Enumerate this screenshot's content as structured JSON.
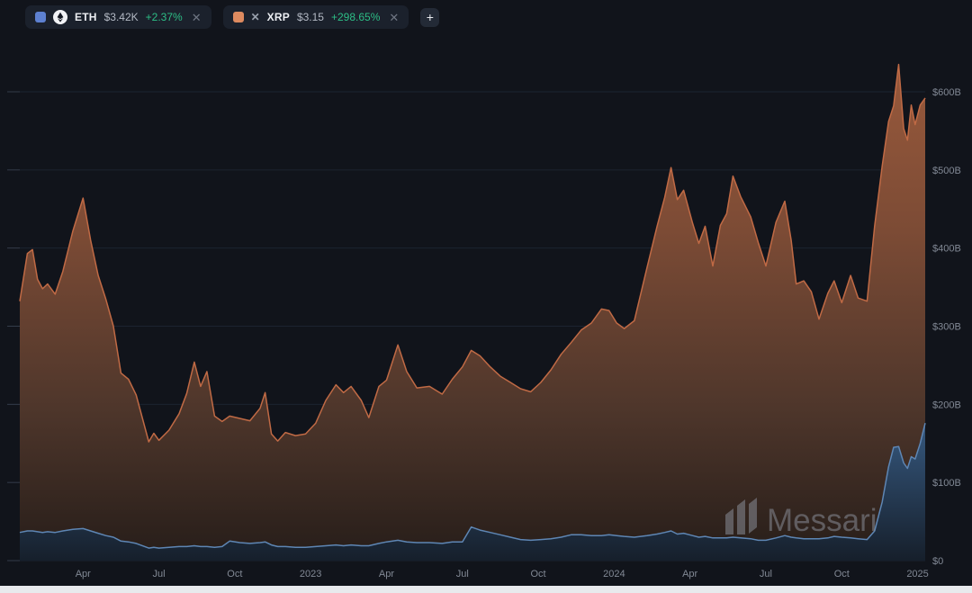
{
  "toolbar": {
    "assets": [
      {
        "symbol": "ETH",
        "price": "$3.42K",
        "change": "+2.37%",
        "swatch_color": "#5d80d0",
        "logo": "eth-icon"
      },
      {
        "symbol": "XRP",
        "price": "$3.15",
        "change": "+298.65%",
        "swatch_color": "#dd8a5f",
        "logo": "xrp-icon"
      }
    ],
    "add_button_label": "+"
  },
  "icons": {
    "close_glyph": "✕",
    "xrp_logo_glyph": "✕"
  },
  "watermark": {
    "text": "Messari"
  },
  "colors": {
    "background": "#11141b",
    "chip_background": "#1b212c",
    "positive_green": "#2dbe86",
    "eth_swatch": "#5d80d0",
    "xrp_swatch": "#dd8a5f",
    "eth_area_line": "#c06a45",
    "xrp_area_line": "#5e86b4",
    "axis_text": "#828995",
    "gridline": "#1c2330"
  },
  "chart_data": {
    "type": "area",
    "stacked": true,
    "unit": "USD market cap (billions)",
    "x_axis": {
      "note": "x in months since Jan 2022",
      "range": [
        0.5,
        36.3
      ],
      "ticks": [
        {
          "m": 3,
          "label": "Apr"
        },
        {
          "m": 6,
          "label": "Jul"
        },
        {
          "m": 9,
          "label": "Oct"
        },
        {
          "m": 12,
          "label": "2023"
        },
        {
          "m": 15,
          "label": "Apr"
        },
        {
          "m": 18,
          "label": "Jul"
        },
        {
          "m": 21,
          "label": "Oct"
        },
        {
          "m": 24,
          "label": "2024"
        },
        {
          "m": 27,
          "label": "Apr"
        },
        {
          "m": 30,
          "label": "Jul"
        },
        {
          "m": 33,
          "label": "Oct"
        },
        {
          "m": 36,
          "label": "2025"
        }
      ]
    },
    "y_axis": {
      "range": [
        0,
        600
      ],
      "ticks": [
        {
          "value": 600,
          "label": "$600B"
        },
        {
          "value": 500,
          "label": "$500B"
        },
        {
          "value": 400,
          "label": "$400B"
        },
        {
          "value": 300,
          "label": "$300B"
        },
        {
          "value": 200,
          "label": "$200B"
        },
        {
          "value": 100,
          "label": "$100B"
        },
        {
          "value": 0,
          "label": "$0"
        }
      ]
    },
    "x_months": [
      0.5,
      0.8,
      1.0,
      1.2,
      1.4,
      1.6,
      1.9,
      2.2,
      2.6,
      3.0,
      3.3,
      3.6,
      3.9,
      4.2,
      4.5,
      4.8,
      5.1,
      5.6,
      5.8,
      6.0,
      6.4,
      6.8,
      7.1,
      7.4,
      7.65,
      7.9,
      8.2,
      8.5,
      8.8,
      9.2,
      9.6,
      10.0,
      10.2,
      10.45,
      10.7,
      11.0,
      11.4,
      11.8,
      12.2,
      12.6,
      13.0,
      13.3,
      13.6,
      14.0,
      14.3,
      14.7,
      15.0,
      15.45,
      15.8,
      16.2,
      16.7,
      17.2,
      17.6,
      18.0,
      18.35,
      18.7,
      19.1,
      19.5,
      19.9,
      20.3,
      20.7,
      21.1,
      21.5,
      21.9,
      22.3,
      22.7,
      23.1,
      23.5,
      23.8,
      24.1,
      24.4,
      24.8,
      25.3,
      25.7,
      26.0,
      26.25,
      26.5,
      26.75,
      27.1,
      27.35,
      27.6,
      27.9,
      28.2,
      28.45,
      28.7,
      29.0,
      29.4,
      29.7,
      30.0,
      30.4,
      30.75,
      31.0,
      31.2,
      31.5,
      31.8,
      32.1,
      32.45,
      32.7,
      33.0,
      33.35,
      33.65,
      34.0,
      34.3,
      34.6,
      34.85,
      35.05,
      35.25,
      35.45,
      35.6,
      35.75,
      35.9,
      36.1,
      36.3
    ],
    "series": [
      {
        "name": "XRP market cap ($B)",
        "position": "bottom band",
        "line_color": "#5e86b4",
        "values": [
          36,
          38,
          38,
          37,
          36,
          37,
          36,
          38,
          40,
          41,
          38,
          35,
          32,
          30,
          25,
          24,
          22,
          16,
          17,
          16,
          17,
          18,
          18,
          19,
          18,
          18,
          17,
          18,
          25,
          23,
          22,
          23,
          24,
          20,
          18,
          18,
          17,
          17,
          18,
          19,
          20,
          19,
          20,
          19,
          19,
          22,
          24,
          26,
          24,
          23,
          23,
          22,
          24,
          24,
          43,
          39,
          36,
          33,
          30,
          27,
          26,
          27,
          28,
          30,
          33,
          33,
          32,
          32,
          33,
          32,
          31,
          30,
          32,
          34,
          36,
          38,
          34,
          35,
          32,
          30,
          31,
          29,
          29,
          29,
          30,
          29,
          28,
          26,
          26,
          29,
          32,
          30,
          29,
          28,
          28,
          28,
          29,
          31,
          30,
          29,
          28,
          27,
          38,
          75,
          120,
          145,
          146,
          125,
          118,
          133,
          130,
          150,
          176
        ]
      },
      {
        "name": "ETH market cap ($B)",
        "position": "top band (stacked on XRP)",
        "line_color": "#c06a45",
        "values": [
          296,
          355,
          360,
          323,
          312,
          317,
          305,
          332,
          382,
          423,
          372,
          330,
          303,
          270,
          215,
          208,
          190,
          136,
          146,
          138,
          150,
          170,
          196,
          235,
          205,
          224,
          168,
          160,
          160,
          159,
          157,
          172,
          191,
          142,
          135,
          146,
          143,
          145,
          158,
          186,
          205,
          196,
          203,
          186,
          164,
          201,
          207,
          250,
          218,
          198,
          200,
          191,
          208,
          224,
          226,
          223,
          212,
          203,
          198,
          193,
          190,
          201,
          216,
          234,
          246,
          262,
          272,
          290,
          287,
          272,
          266,
          277,
          343,
          394,
          429,
          465,
          428,
          439,
          400,
          376,
          397,
          348,
          400,
          415,
          462,
          437,
          412,
          381,
          351,
          404,
          428,
          380,
          325,
          330,
          316,
          281,
          313,
          327,
          300,
          336,
          308,
          305,
          390,
          430,
          442,
          437,
          489,
          428,
          420,
          450,
          428,
          433,
          416
        ]
      }
    ]
  }
}
